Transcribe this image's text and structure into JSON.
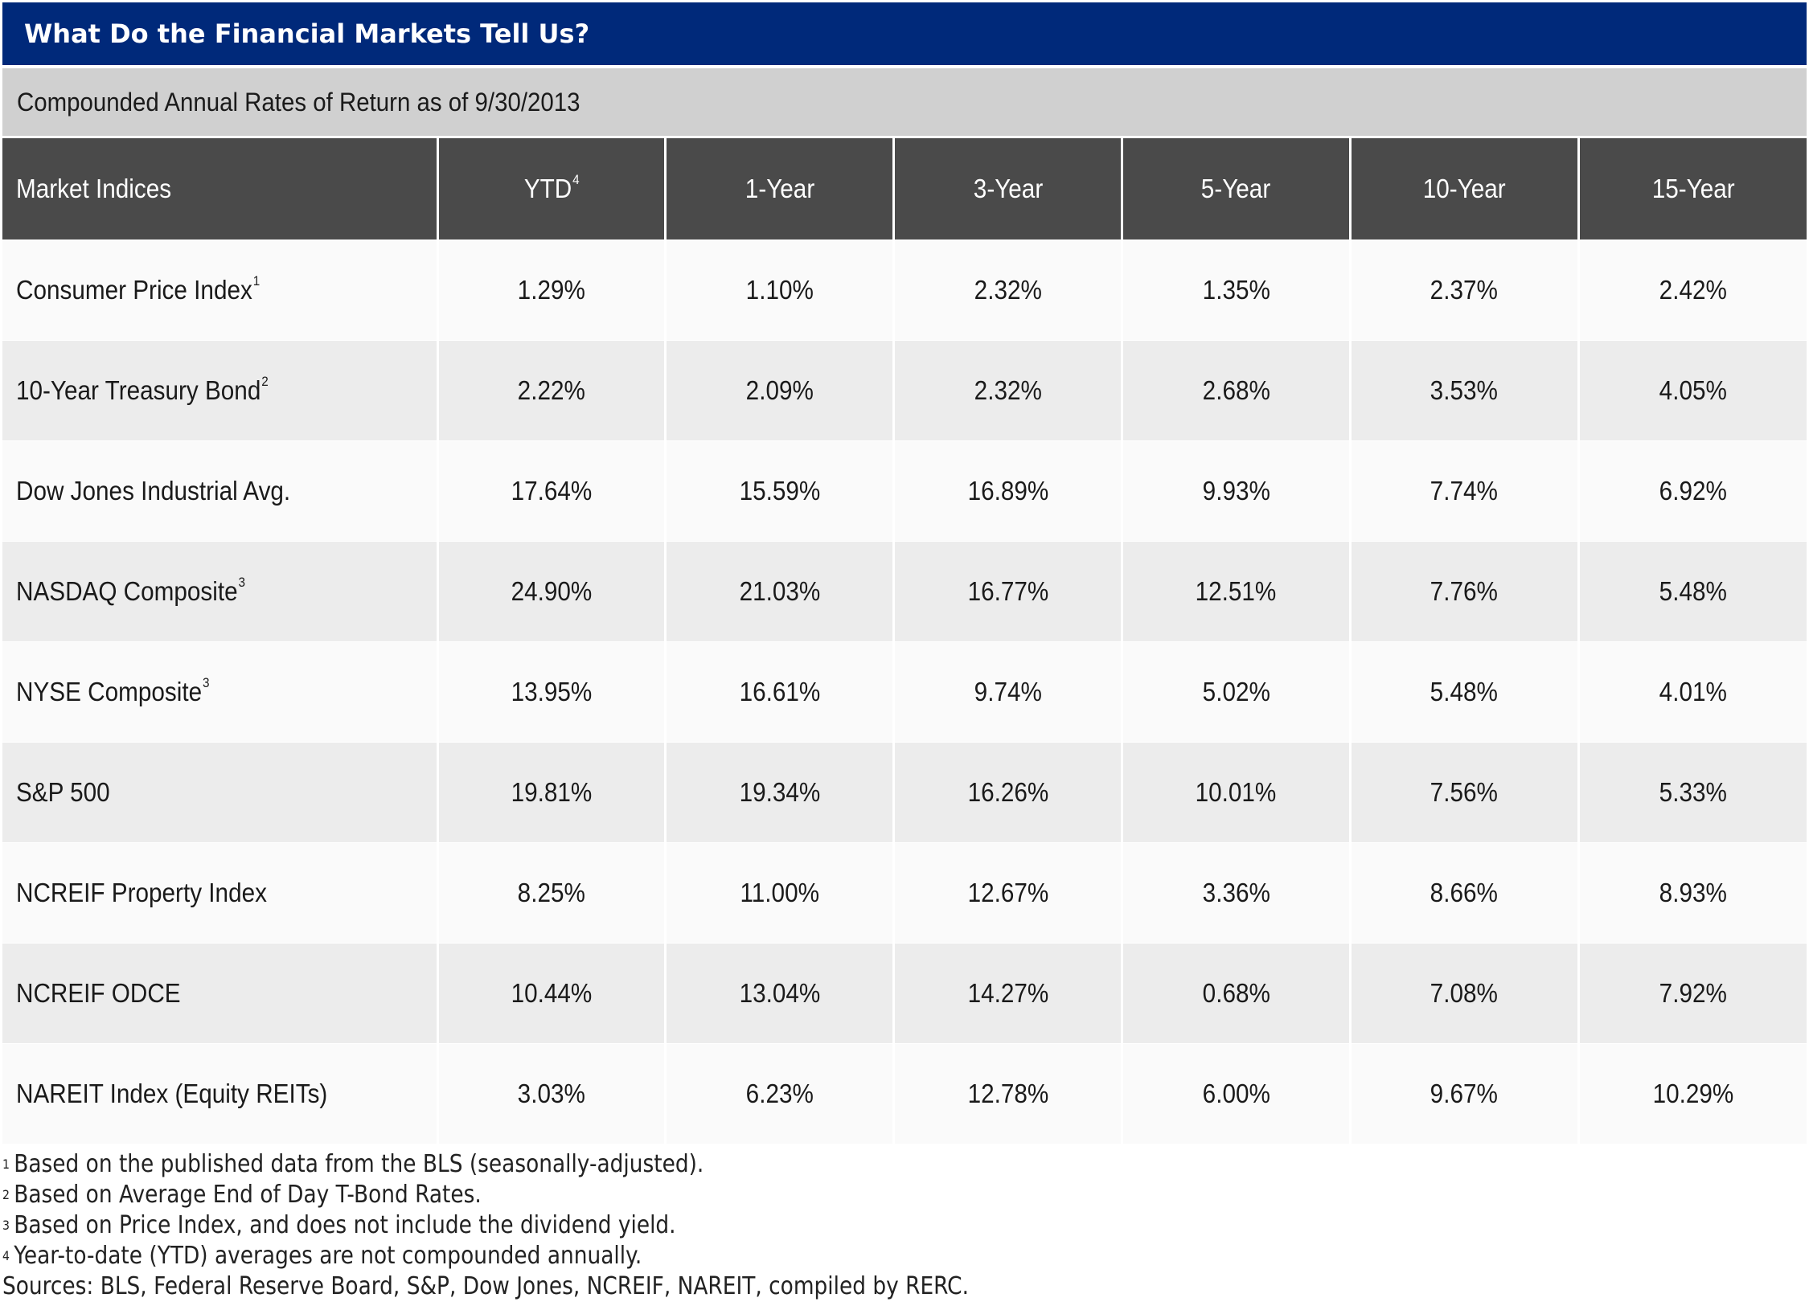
{
  "title": "What Do the Financial Markets Tell Us?",
  "subtitle": "Compounded Annual Rates of Return as of 9/30/2013",
  "table": {
    "headers": [
      {
        "label": "Market Indices",
        "sup": ""
      },
      {
        "label": "YTD",
        "sup": "4"
      },
      {
        "label": "1-Year",
        "sup": ""
      },
      {
        "label": "3-Year",
        "sup": ""
      },
      {
        "label": "5-Year",
        "sup": ""
      },
      {
        "label": "10-Year",
        "sup": ""
      },
      {
        "label": "15-Year",
        "sup": ""
      }
    ],
    "rows": [
      {
        "name": "Consumer Price Index",
        "sup": "1",
        "values": [
          "1.29%",
          "1.10%",
          "2.32%",
          "1.35%",
          "2.37%",
          "2.42%"
        ]
      },
      {
        "name": "10-Year Treasury Bond",
        "sup": "2",
        "values": [
          "2.22%",
          "2.09%",
          "2.32%",
          "2.68%",
          "3.53%",
          "4.05%"
        ]
      },
      {
        "name": "Dow Jones Industrial Avg.",
        "sup": "",
        "values": [
          "17.64%",
          "15.59%",
          "16.89%",
          "9.93%",
          "7.74%",
          "6.92%"
        ]
      },
      {
        "name": "NASDAQ Composite",
        "sup": "3",
        "values": [
          "24.90%",
          "21.03%",
          "16.77%",
          "12.51%",
          "7.76%",
          "5.48%"
        ]
      },
      {
        "name": "NYSE Composite",
        "sup": "3",
        "values": [
          "13.95%",
          "16.61%",
          "9.74%",
          "5.02%",
          "5.48%",
          "4.01%"
        ]
      },
      {
        "name": "S&P 500",
        "sup": "",
        "values": [
          "19.81%",
          "19.34%",
          "16.26%",
          "10.01%",
          "7.56%",
          "5.33%"
        ]
      },
      {
        "name": "NCREIF Property Index",
        "sup": "",
        "values": [
          "8.25%",
          "11.00%",
          "12.67%",
          "3.36%",
          "8.66%",
          "8.93%"
        ]
      },
      {
        "name": "NCREIF ODCE",
        "sup": "",
        "values": [
          "10.44%",
          "13.04%",
          "14.27%",
          "0.68%",
          "7.08%",
          "7.92%"
        ]
      },
      {
        "name": "NAREIT Index (Equity REITs)",
        "sup": "",
        "values": [
          "3.03%",
          "6.23%",
          "12.78%",
          "6.00%",
          "9.67%",
          "10.29%"
        ]
      }
    ]
  },
  "footnotes": [
    {
      "num": "1",
      "text": "Based on the published data from the BLS (seasonally-adjusted)."
    },
    {
      "num": "2",
      "text": "Based on Average End of Day T-Bond Rates."
    },
    {
      "num": "3",
      "text": "Based on Price Index, and does not include the dividend yield."
    },
    {
      "num": "4",
      "text": "Year-to-date (YTD) averages are not compounded annually."
    }
  ],
  "sources": "Sources:  BLS, Federal Reserve Board, S&P, Dow Jones, NCREIF, NAREIT, compiled by RERC.",
  "colors": {
    "title_bar": "#00297a",
    "subtitle_bar": "#d0d0d0",
    "header_row": "#4a4a4a",
    "row_light": "#fafafa",
    "row_dark": "#ececec"
  }
}
